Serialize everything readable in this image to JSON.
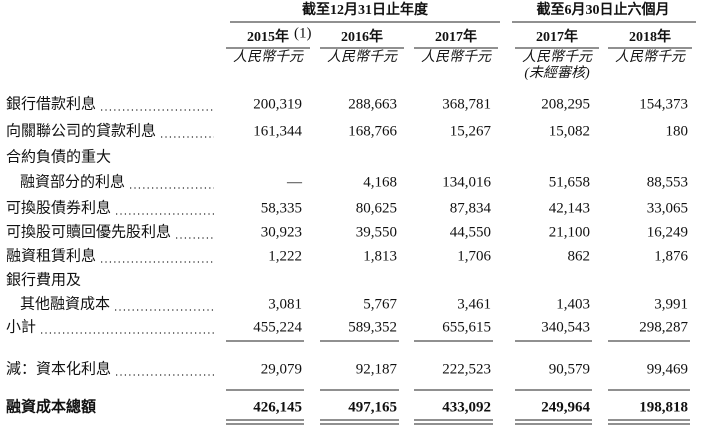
{
  "header": {
    "groups": [
      "截至12月31日止年度",
      "截至6月30日止六個月"
    ],
    "years": [
      "2015年",
      "2016年",
      "2017年",
      "2017年",
      "2018年"
    ],
    "note_mark": "(1)",
    "units": [
      "人民幣千元",
      "人民幣千元",
      "人民幣千元",
      "人民幣千元",
      "人民幣千元"
    ],
    "unaudited": "(未經審核)"
  },
  "table": {
    "rows": [
      {
        "label": [
          "銀行借款利息"
        ],
        "values": [
          "200,319",
          "288,663",
          "368,781",
          "208,295",
          "154,373"
        ]
      },
      {
        "label": [
          "向關聯公司的貸款利息"
        ],
        "values": [
          "161,344",
          "168,766",
          "15,267",
          "15,082",
          "180"
        ]
      },
      {
        "label": [
          "合約負債的重大",
          "融資部分的利息"
        ],
        "values": [
          "—",
          "4,168",
          "134,016",
          "51,658",
          "88,553"
        ]
      },
      {
        "label": [
          "可換股債券利息"
        ],
        "values": [
          "58,335",
          "80,625",
          "87,834",
          "42,143",
          "33,065"
        ]
      },
      {
        "label": [
          "可換股可贖回優先股利息"
        ],
        "values": [
          "30,923",
          "39,550",
          "44,550",
          "21,100",
          "16,249"
        ]
      },
      {
        "label": [
          "融資租賃利息"
        ],
        "values": [
          "1,222",
          "1,813",
          "1,706",
          "862",
          "1,876"
        ]
      },
      {
        "label": [
          "銀行費用及",
          "其他融資成本"
        ],
        "values": [
          "3,081",
          "5,767",
          "3,461",
          "1,403",
          "3,991"
        ]
      },
      {
        "label": [
          "小計"
        ],
        "values": [
          "455,224",
          "589,352",
          "655,615",
          "340,543",
          "298,287"
        ]
      },
      {
        "label": [
          "減：資本化利息"
        ],
        "values": [
          "29,079",
          "92,187",
          "222,523",
          "90,579",
          "99,469"
        ]
      },
      {
        "label": [
          "融資成本總額"
        ],
        "values": [
          "426,145",
          "497,165",
          "433,092",
          "249,964",
          "198,818"
        ]
      }
    ]
  }
}
